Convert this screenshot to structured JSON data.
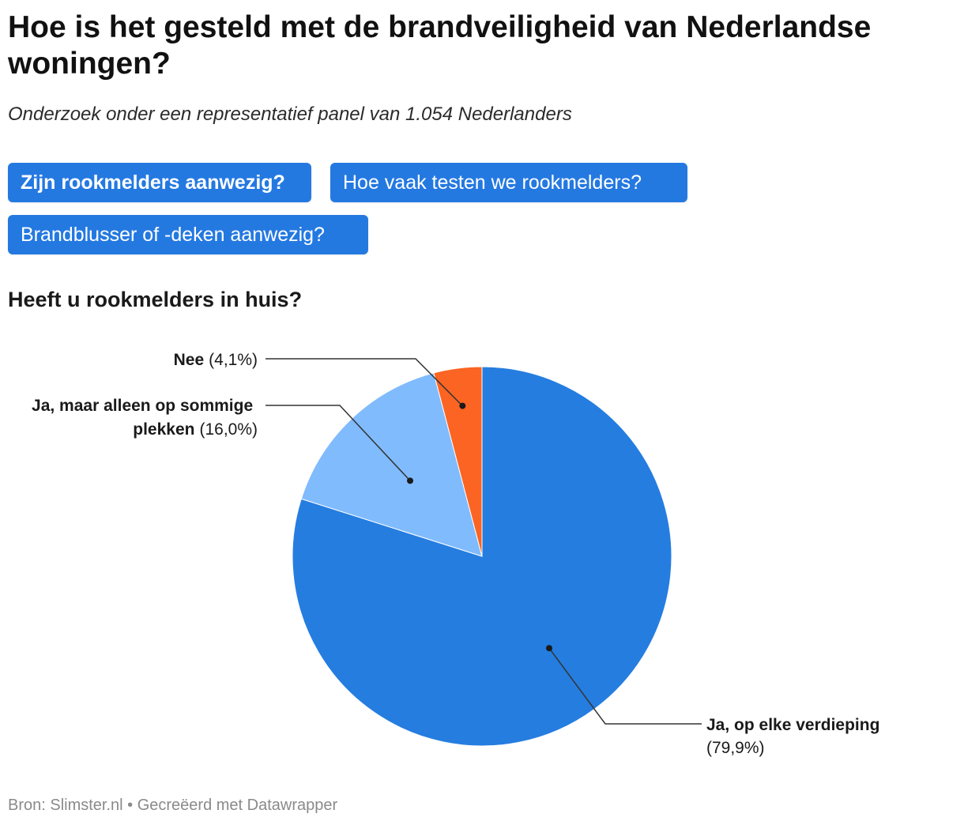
{
  "header": {
    "title": "Hoe is het gesteld met de brandveiligheid van Nederlandse woningen?",
    "subtitle": "Onderzoek onder een representatief panel van 1.054 Nederlanders"
  },
  "tabs": [
    {
      "label": "Zijn rookmelders aanwezig?",
      "active": true
    },
    {
      "label": "Hoe vaak testen we rookmelders?",
      "active": false
    },
    {
      "label": "Brandblusser of -deken aanwezig?",
      "active": false
    }
  ],
  "colors": {
    "tab_bg": "#2479e1",
    "slice_elke_verdieping": "#257de0",
    "slice_sommige_plekken": "#80bbfd",
    "slice_nee": "#fb6423"
  },
  "chart_data": {
    "type": "pie",
    "title": "Heeft u rookmelders in huis?",
    "slices": [
      {
        "name": "Ja, op elke verdieping",
        "value": 79.9,
        "value_label": "(79,9%)"
      },
      {
        "name": "Ja, maar alleen op sommige plekken",
        "value": 16.0,
        "value_label": "(16,0%)"
      },
      {
        "name": "Nee",
        "value": 4.1,
        "value_label": "(4,1%)"
      }
    ]
  },
  "footer": {
    "source": "Bron: Slimster.nl • Gecreëerd met Datawrapper"
  }
}
